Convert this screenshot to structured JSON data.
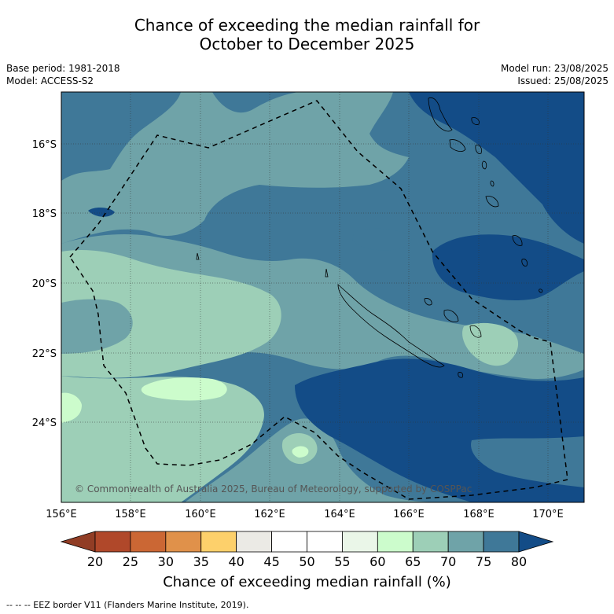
{
  "title_line1": "Chance of exceeding the median rainfall for",
  "title_line2": "October to December 2025",
  "base_period": "Base period: 1981-2018",
  "model": "Model: ACCESS-S2",
  "model_run": "Model run: 23/08/2025",
  "issued": "Issued: 25/08/2025",
  "copyright": "© Commonwealth of Australia 2025, Bureau of Meteorology, supported by COSPPac",
  "lat_labels": [
    "16°S",
    "18°S",
    "20°S",
    "22°S",
    "24°S"
  ],
  "lon_labels": [
    "156°E",
    "158°E",
    "160°E",
    "162°E",
    "164°E",
    "166°E",
    "168°E",
    "170°E"
  ],
  "colorbar": {
    "ticks": [
      "20",
      "25",
      "30",
      "35",
      "40",
      "45",
      "50",
      "55",
      "60",
      "65",
      "70",
      "75",
      "80"
    ],
    "colors": [
      "#b0482a",
      "#cb6734",
      "#e0914a",
      "#fdd06b",
      "#ebeae5",
      "#ffffff",
      "#ffffff",
      "#eaf6e8",
      "#ccfccc",
      "#9dcfb7",
      "#6fa3a8",
      "#3f7898"
    ],
    "under_color": "#913d25",
    "over_color": "#134c87",
    "label": "Chance of exceeding median rainfall (%)"
  },
  "legend_note": "-- -- -- EEZ border V11 (Flanders Marine Institute, 2019)."
}
